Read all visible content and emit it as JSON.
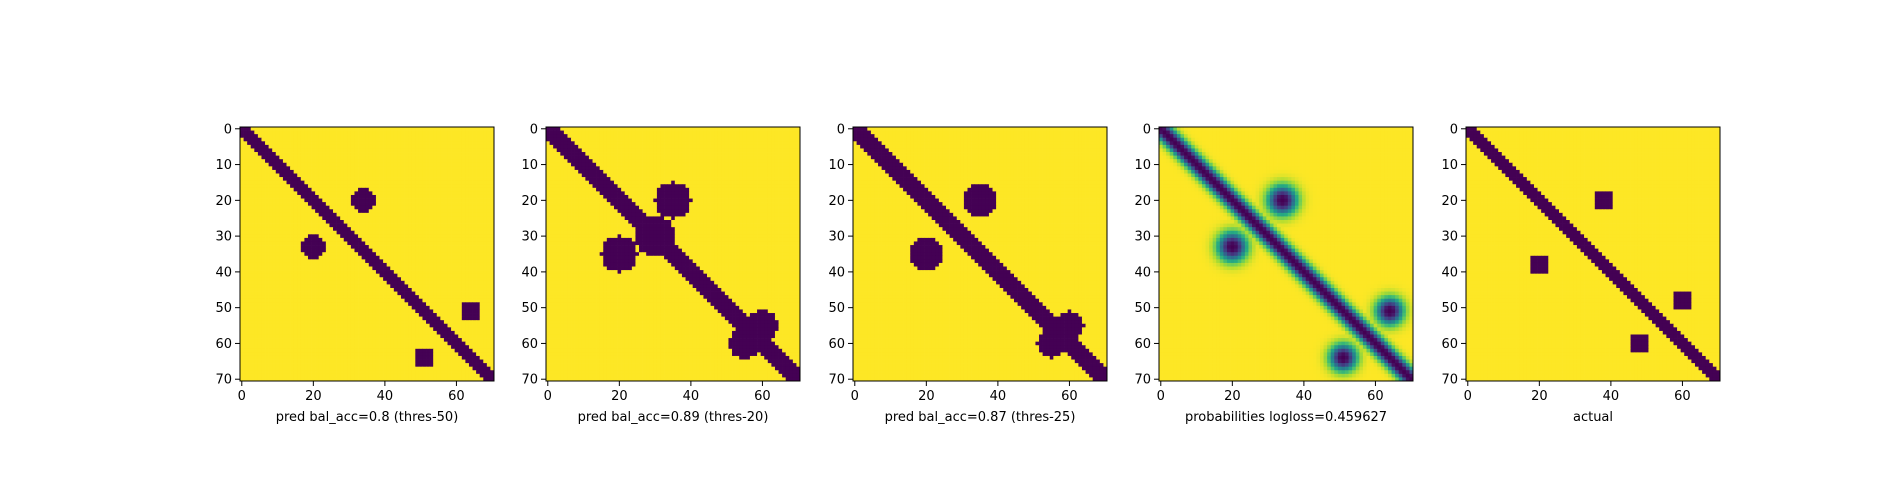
{
  "chart_data": [
    {
      "type": "heatmap",
      "xlabel": "pred bal_acc=0.8 (thres-50)",
      "x_ticks": [
        0,
        20,
        40,
        60
      ],
      "y_ticks": [
        0,
        10,
        20,
        30,
        40,
        50,
        60,
        70
      ],
      "xlim": [
        0,
        70
      ],
      "ylim": [
        70,
        0
      ],
      "colormap": "viridis",
      "values": "binary",
      "diagonal_band_width": 2.5,
      "blobs": [
        [
          20,
          34,
          2.2
        ],
        [
          33,
          20,
          2.2
        ],
        [
          64,
          51,
          2.0
        ],
        [
          51,
          64,
          2.0
        ]
      ]
    },
    {
      "type": "heatmap",
      "xlabel": "pred bal_acc=0.89 (thres-20)",
      "x_ticks": [
        0,
        20,
        40,
        60
      ],
      "y_ticks": [
        0,
        10,
        20,
        30,
        40,
        50,
        60,
        70
      ],
      "xlim": [
        0,
        70
      ],
      "ylim": [
        70,
        0
      ],
      "colormap": "viridis",
      "values": "binary",
      "diagonal_band_width": 3.5,
      "blobs": [
        [
          20,
          35,
          3.5
        ],
        [
          35,
          20,
          3.5
        ],
        [
          60,
          55,
          3.0
        ],
        [
          55,
          60,
          3.0
        ],
        [
          30,
          30,
          4.0
        ]
      ]
    },
    {
      "type": "heatmap",
      "xlabel": "pred bal_acc=0.87 (thres-25)",
      "x_ticks": [
        0,
        20,
        40,
        60
      ],
      "y_ticks": [
        0,
        10,
        20,
        30,
        40,
        50,
        60,
        70
      ],
      "xlim": [
        0,
        70
      ],
      "ylim": [
        70,
        0
      ],
      "colormap": "viridis",
      "values": "binary",
      "diagonal_band_width": 3.2,
      "blobs": [
        [
          20,
          35,
          3.2
        ],
        [
          35,
          20,
          3.2
        ],
        [
          60,
          55,
          2.8
        ],
        [
          55,
          60,
          2.8
        ]
      ]
    },
    {
      "type": "heatmap",
      "xlabel": "probabilities logloss=0.459627",
      "x_ticks": [
        0,
        20,
        40,
        60
      ],
      "y_ticks": [
        0,
        10,
        20,
        30,
        40,
        50,
        60,
        70
      ],
      "xlim": [
        0,
        70
      ],
      "ylim": [
        70,
        0
      ],
      "colormap": "viridis",
      "values": "continuous",
      "value_range": [
        0,
        1
      ],
      "diagonal_band_width": 3.0,
      "blobs": [
        [
          20,
          34,
          2.6
        ],
        [
          33,
          20,
          2.6
        ],
        [
          64,
          51,
          2.4
        ],
        [
          51,
          64,
          2.4
        ]
      ]
    },
    {
      "type": "heatmap",
      "xlabel": "actual",
      "x_ticks": [
        0,
        20,
        40,
        60
      ],
      "y_ticks": [
        0,
        10,
        20,
        30,
        40,
        50,
        60,
        70
      ],
      "xlim": [
        0,
        70
      ],
      "ylim": [
        70,
        0
      ],
      "colormap": "viridis",
      "values": "binary",
      "diagonal_band_width": 2.6,
      "blobs": [
        [
          20,
          38,
          2.0
        ],
        [
          38,
          20,
          2.0
        ],
        [
          60,
          48,
          2.0
        ],
        [
          48,
          60,
          2.0
        ]
      ]
    }
  ]
}
